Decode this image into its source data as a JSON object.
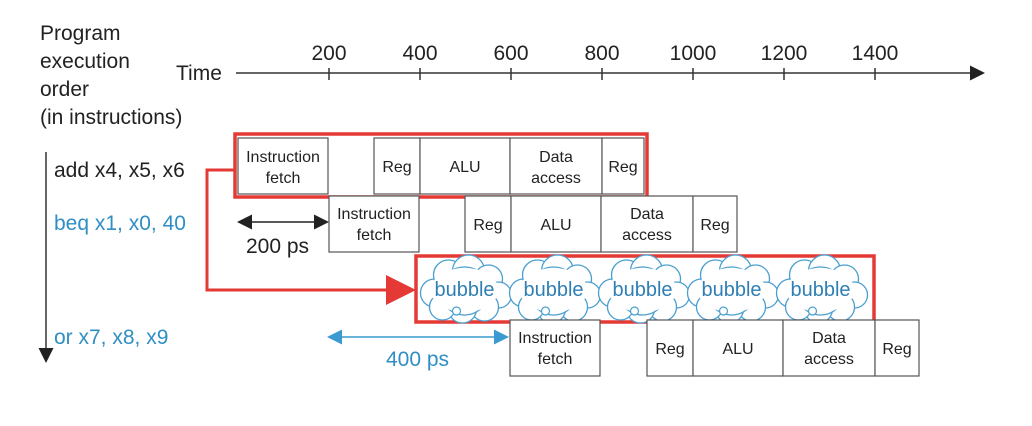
{
  "header": {
    "order_lines": [
      "Program",
      "execution",
      "order",
      "(in instructions)"
    ],
    "time_label": "Time"
  },
  "time_ticks": [
    "200",
    "400",
    "600",
    "800",
    "1000",
    "1200",
    "1400"
  ],
  "instructions": [
    {
      "text": "add x4, x5, x6",
      "color": "#222222"
    },
    {
      "text": "beq x1, x0, 40",
      "color": "#2f8fc4"
    },
    {
      "text": "or x7, x8, x9",
      "color": "#2f8fc4"
    }
  ],
  "stages": {
    "fetch": [
      "Instruction",
      "fetch"
    ],
    "reg": "Reg",
    "alu": "ALU",
    "data": [
      "Data",
      "access"
    ]
  },
  "bubble_label": "bubble",
  "bubble_count": 5,
  "durations": {
    "short": "200 ps",
    "long": "400 ps"
  },
  "colors": {
    "highlight": "#e53935",
    "blue": "#2f8fc4",
    "bubble_stroke": "#4a9fd0",
    "bubble_fill": "#ffffff"
  }
}
